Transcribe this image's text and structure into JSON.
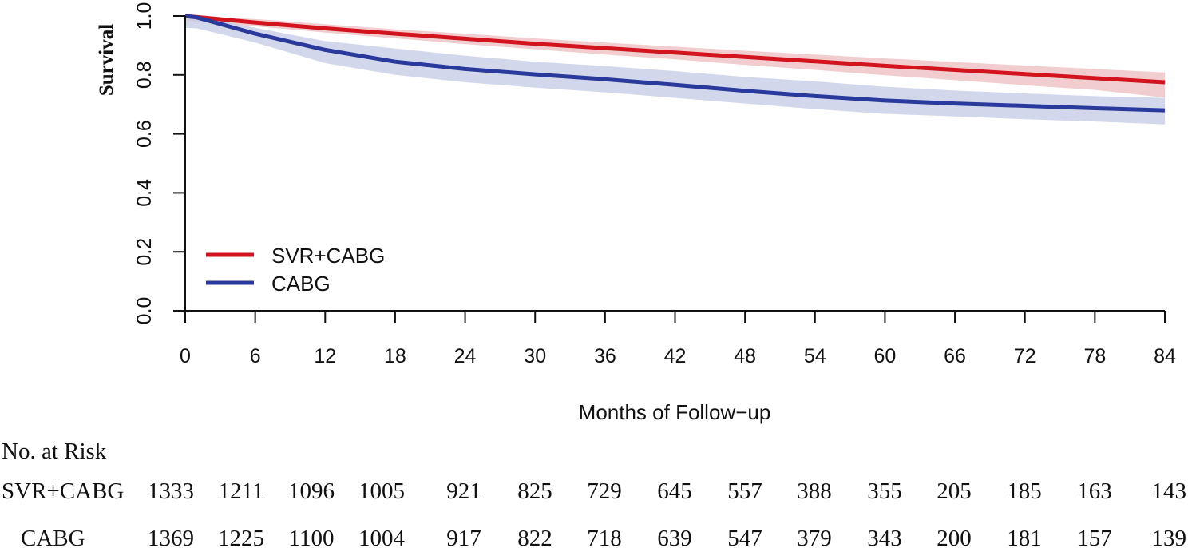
{
  "chart_data": {
    "type": "line",
    "title": "",
    "xlabel": "Months of Follow−up",
    "ylabel": "Survival",
    "xlim": [
      0,
      84
    ],
    "ylim": [
      0.0,
      1.0
    ],
    "x_ticks": [
      0,
      6,
      12,
      18,
      24,
      30,
      36,
      42,
      48,
      54,
      60,
      66,
      72,
      78,
      84
    ],
    "y_ticks": [
      "0.0",
      "0.2",
      "0.4",
      "0.6",
      "0.8",
      "1.0"
    ],
    "legend_position": "bottom-left",
    "series": [
      {
        "name": "SVR+CABG",
        "color": "#d2141e",
        "band_color": "#eebcbf",
        "x": [
          0,
          6,
          12,
          18,
          24,
          30,
          36,
          42,
          48,
          54,
          60,
          66,
          72,
          78,
          84
        ],
        "y": [
          1.0,
          0.978,
          0.958,
          0.94,
          0.923,
          0.906,
          0.891,
          0.876,
          0.861,
          0.846,
          0.831,
          0.817,
          0.803,
          0.789,
          0.775
        ],
        "lower": [
          0.985,
          0.965,
          0.944,
          0.924,
          0.905,
          0.887,
          0.869,
          0.853,
          0.834,
          0.817,
          0.799,
          0.782,
          0.765,
          0.749,
          0.723
        ],
        "upper": [
          1.0,
          0.99,
          0.972,
          0.955,
          0.94,
          0.924,
          0.91,
          0.896,
          0.882,
          0.869,
          0.856,
          0.844,
          0.832,
          0.82,
          0.808
        ]
      },
      {
        "name": "CABG",
        "color": "#2a3a9c",
        "band_color": "#c4c9e6",
        "x": [
          0,
          1,
          6,
          12,
          18,
          24,
          30,
          36,
          42,
          48,
          54,
          60,
          66,
          72,
          78,
          84
        ],
        "y": [
          1.0,
          0.995,
          0.94,
          0.885,
          0.845,
          0.82,
          0.802,
          0.785,
          0.766,
          0.746,
          0.728,
          0.713,
          0.703,
          0.695,
          0.687,
          0.68
        ],
        "lower": [
          0.96,
          0.958,
          0.91,
          0.84,
          0.8,
          0.775,
          0.757,
          0.741,
          0.722,
          0.703,
          0.684,
          0.668,
          0.659,
          0.65,
          0.642,
          0.632
        ],
        "upper": [
          1.0,
          1.0,
          0.96,
          0.915,
          0.89,
          0.865,
          0.845,
          0.83,
          0.813,
          0.793,
          0.778,
          0.76,
          0.747,
          0.737,
          0.728,
          0.722
        ]
      }
    ],
    "risk_table": {
      "header": "No. at Risk",
      "rows": [
        {
          "label": "SVR+CABG",
          "values": [
            "1333",
            "1211",
            "1096",
            "1005",
            "921",
            "825",
            "729",
            "645",
            "557",
            "388",
            "355",
            "205",
            "185",
            "163",
            "143"
          ]
        },
        {
          "label": "CABG",
          "values": [
            "1369",
            "1225",
            "1100",
            "1004",
            "917",
            "822",
            "718",
            "639",
            "547",
            "379",
            "343",
            "200",
            "181",
            "157",
            "139"
          ]
        }
      ]
    }
  }
}
